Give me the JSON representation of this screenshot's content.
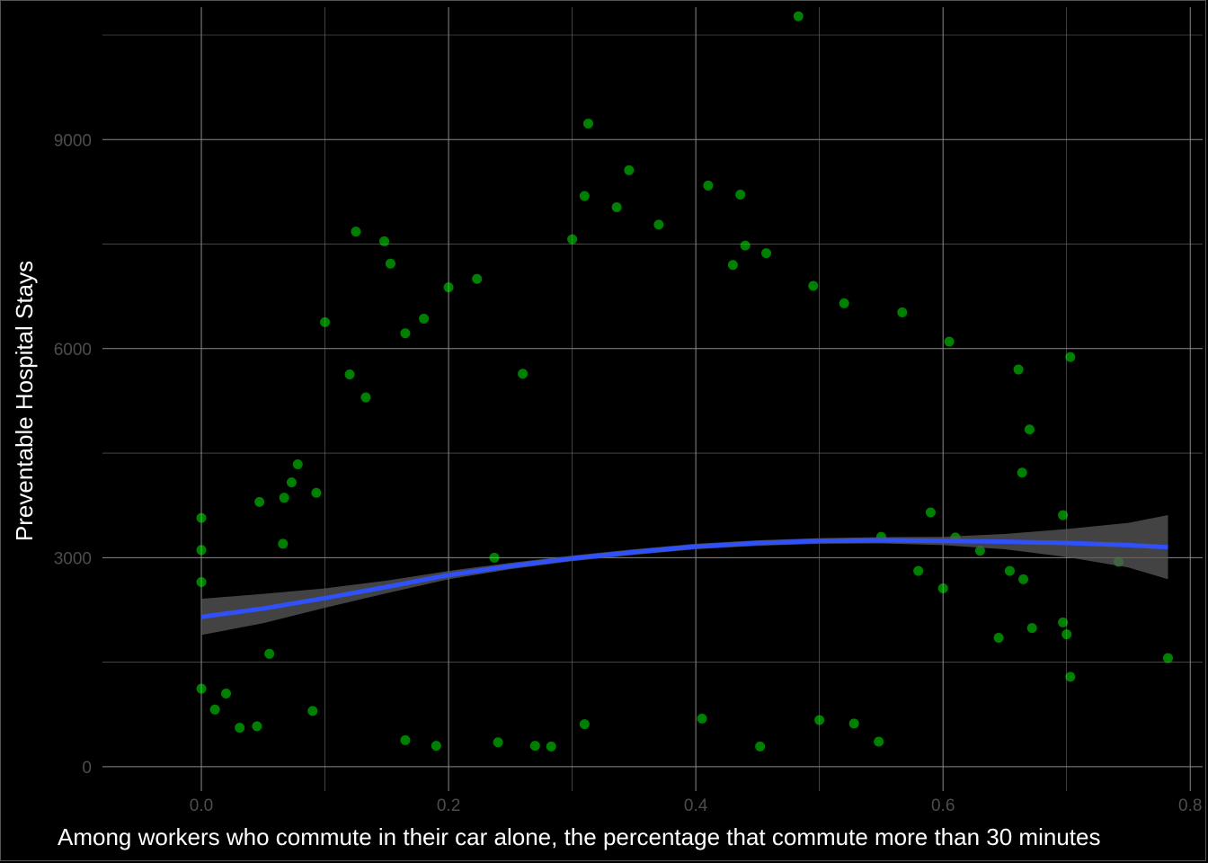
{
  "chart_data": {
    "type": "scatter",
    "title": "",
    "xlabel": "Among workers who commute in their car alone, the percentage that commute more than 30 minutes",
    "ylabel": "Preventable Hospital Stays",
    "xlim": [
      -0.08,
      0.81
    ],
    "ylim": [
      -350,
      10900
    ],
    "x_ticks": [
      "0.0",
      "0.2",
      "0.4",
      "0.6",
      "0.8"
    ],
    "x_tick_values": [
      0.0,
      0.2,
      0.4,
      0.6,
      0.8
    ],
    "y_ticks": [
      "0",
      "3000",
      "6000",
      "9000"
    ],
    "y_tick_values": [
      0,
      3000,
      6000,
      9000
    ],
    "grid": true,
    "background": "#000000",
    "point_color": "#00ff00",
    "trend_color": "#3050f8",
    "band_color": "#595959",
    "points": [
      {
        "x": 0.0,
        "y": 3570
      },
      {
        "x": 0.0,
        "y": 3110
      },
      {
        "x": 0.0,
        "y": 2650
      },
      {
        "x": 0.0,
        "y": 1120
      },
      {
        "x": 0.011,
        "y": 820
      },
      {
        "x": 0.02,
        "y": 1050
      },
      {
        "x": 0.031,
        "y": 560
      },
      {
        "x": 0.045,
        "y": 580
      },
      {
        "x": 0.047,
        "y": 3800
      },
      {
        "x": 0.055,
        "y": 1620
      },
      {
        "x": 0.066,
        "y": 3200
      },
      {
        "x": 0.067,
        "y": 3860
      },
      {
        "x": 0.073,
        "y": 4080
      },
      {
        "x": 0.078,
        "y": 4340
      },
      {
        "x": 0.09,
        "y": 800
      },
      {
        "x": 0.093,
        "y": 3930
      },
      {
        "x": 0.1,
        "y": 6380
      },
      {
        "x": 0.12,
        "y": 5630
      },
      {
        "x": 0.125,
        "y": 7680
      },
      {
        "x": 0.133,
        "y": 5300
      },
      {
        "x": 0.148,
        "y": 7540
      },
      {
        "x": 0.153,
        "y": 7220
      },
      {
        "x": 0.165,
        "y": 6220
      },
      {
        "x": 0.18,
        "y": 6430
      },
      {
        "x": 0.2,
        "y": 6880
      },
      {
        "x": 0.223,
        "y": 7000
      },
      {
        "x": 0.26,
        "y": 5640
      },
      {
        "x": 0.3,
        "y": 7570
      },
      {
        "x": 0.31,
        "y": 8190
      },
      {
        "x": 0.313,
        "y": 9230
      },
      {
        "x": 0.336,
        "y": 8030
      },
      {
        "x": 0.346,
        "y": 8560
      },
      {
        "x": 0.37,
        "y": 7780
      },
      {
        "x": 0.41,
        "y": 8340
      },
      {
        "x": 0.436,
        "y": 8210
      },
      {
        "x": 0.44,
        "y": 7480
      },
      {
        "x": 0.43,
        "y": 7200
      },
      {
        "x": 0.457,
        "y": 7370
      },
      {
        "x": 0.483,
        "y": 10770
      },
      {
        "x": 0.495,
        "y": 6900
      },
      {
        "x": 0.52,
        "y": 6650
      },
      {
        "x": 0.567,
        "y": 6520
      },
      {
        "x": 0.605,
        "y": 6100
      },
      {
        "x": 0.661,
        "y": 5700
      },
      {
        "x": 0.703,
        "y": 5880
      },
      {
        "x": 0.664,
        "y": 4220
      },
      {
        "x": 0.67,
        "y": 4840
      },
      {
        "x": 0.697,
        "y": 3610
      },
      {
        "x": 0.697,
        "y": 2070
      },
      {
        "x": 0.7,
        "y": 1900
      },
      {
        "x": 0.703,
        "y": 1290
      },
      {
        "x": 0.742,
        "y": 2940
      },
      {
        "x": 0.782,
        "y": 1560
      },
      {
        "x": 0.665,
        "y": 2690
      },
      {
        "x": 0.672,
        "y": 1990
      },
      {
        "x": 0.645,
        "y": 1850
      },
      {
        "x": 0.548,
        "y": 360
      },
      {
        "x": 0.528,
        "y": 620
      },
      {
        "x": 0.5,
        "y": 670
      },
      {
        "x": 0.452,
        "y": 290
      },
      {
        "x": 0.405,
        "y": 690
      },
      {
        "x": 0.31,
        "y": 610
      },
      {
        "x": 0.283,
        "y": 290
      },
      {
        "x": 0.27,
        "y": 300
      },
      {
        "x": 0.24,
        "y": 350
      },
      {
        "x": 0.19,
        "y": 300
      },
      {
        "x": 0.165,
        "y": 380
      },
      {
        "x": 0.237,
        "y": 3000
      },
      {
        "x": 0.61,
        "y": 3290
      },
      {
        "x": 0.63,
        "y": 3100
      },
      {
        "x": 0.654,
        "y": 2810
      },
      {
        "x": 0.6,
        "y": 2560
      },
      {
        "x": 0.58,
        "y": 2810
      },
      {
        "x": 0.55,
        "y": 3300
      },
      {
        "x": 0.59,
        "y": 3650
      }
    ],
    "trend": {
      "x": [
        0.0,
        0.05,
        0.1,
        0.15,
        0.2,
        0.25,
        0.3,
        0.35,
        0.4,
        0.45,
        0.5,
        0.55,
        0.6,
        0.65,
        0.7,
        0.75,
        0.782
      ],
      "y": [
        2150,
        2270,
        2420,
        2580,
        2750,
        2880,
        2990,
        3080,
        3160,
        3210,
        3240,
        3250,
        3240,
        3230,
        3210,
        3180,
        3150
      ],
      "band_half_width": [
        260,
        210,
        140,
        90,
        60,
        45,
        40,
        40,
        40,
        40,
        40,
        45,
        60,
        110,
        200,
        320,
        460
      ]
    }
  }
}
